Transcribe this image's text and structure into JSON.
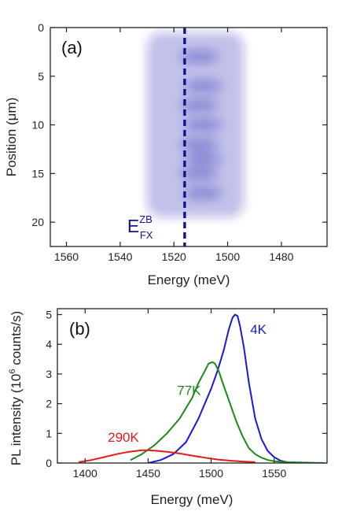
{
  "chart_data": [
    {
      "panel": "(a)",
      "type": "heatmap",
      "xlabel": "Energy (meV)",
      "ylabel": "Position (μm)",
      "x_reversed": true,
      "xlim": [
        1566,
        1463
      ],
      "ylim": [
        22.5,
        0
      ],
      "y_reversed": true,
      "x_ticks": [
        1560,
        1540,
        1520,
        1500,
        1480
      ],
      "y_ticks": [
        0,
        5,
        10,
        15,
        20
      ],
      "colormap": [
        "#ffffff",
        "#1f1fb4"
      ],
      "emission": {
        "energy_range": [
          1530,
          1494
        ],
        "center_energy": 1510,
        "position_range": [
          0.5,
          19.5
        ],
        "bright_rows_um": [
          3,
          6,
          8,
          10,
          12,
          13.5,
          15,
          17
        ]
      },
      "marker": {
        "energy": 1516,
        "style": "dashed",
        "color": "#14148c",
        "label_main": "E",
        "label_sup": "ZB",
        "label_sub": "FX"
      }
    },
    {
      "panel": "(b)",
      "type": "line",
      "xlabel": "Energy (meV)",
      "ylabel_main": "PL intensity (10",
      "ylabel_sup": "6",
      "ylabel_tail": " counts/s)",
      "xlim": [
        1378,
        1592
      ],
      "ylim": [
        0,
        5.2
      ],
      "x_ticks": [
        1400,
        1450,
        1500,
        1550
      ],
      "y_ticks": [
        0,
        1,
        2,
        3,
        4,
        5
      ],
      "series": [
        {
          "name": "4K",
          "color": "#1a1ad6",
          "x": [
            1450,
            1460,
            1470,
            1480,
            1490,
            1495,
            1500,
            1505,
            1510,
            1514,
            1517,
            1519,
            1521,
            1523,
            1526,
            1530,
            1535,
            1540,
            1545,
            1550,
            1555,
            1560,
            1565
          ],
          "y": [
            0.0,
            0.1,
            0.3,
            0.7,
            1.5,
            2.0,
            2.5,
            3.1,
            3.8,
            4.5,
            4.9,
            5.0,
            4.95,
            4.6,
            3.9,
            2.7,
            1.5,
            0.8,
            0.4,
            0.2,
            0.08,
            0.03,
            0.0
          ]
        },
        {
          "name": "77K",
          "color": "#1a8a1a",
          "x": [
            1436,
            1445,
            1455,
            1465,
            1475,
            1485,
            1490,
            1495,
            1498,
            1501,
            1503,
            1506,
            1510,
            1515,
            1520,
            1525,
            1530,
            1535,
            1540,
            1545,
            1550,
            1560,
            1570,
            1580,
            1590
          ],
          "y": [
            0.1,
            0.3,
            0.6,
            1.0,
            1.5,
            2.2,
            2.7,
            3.1,
            3.35,
            3.4,
            3.35,
            3.1,
            2.6,
            2.0,
            1.4,
            0.9,
            0.5,
            0.3,
            0.18,
            0.1,
            0.06,
            0.03,
            0.02,
            0.01,
            0.0
          ]
        },
        {
          "name": "290K",
          "color": "#e01a1a",
          "x": [
            1395,
            1405,
            1415,
            1425,
            1435,
            1445,
            1450,
            1455,
            1465,
            1475,
            1485,
            1495,
            1505,
            1515,
            1525,
            1535
          ],
          "y": [
            0.03,
            0.1,
            0.2,
            0.3,
            0.38,
            0.43,
            0.43,
            0.42,
            0.38,
            0.32,
            0.25,
            0.18,
            0.12,
            0.08,
            0.05,
            0.03
          ]
        }
      ],
      "series_labels": [
        {
          "text": "4K",
          "x": 1531,
          "y": 4.35
        },
        {
          "text": "77K",
          "x": 1473,
          "y": 2.3
        },
        {
          "text": "290K",
          "x": 1418,
          "y": 0.72
        }
      ]
    }
  ]
}
